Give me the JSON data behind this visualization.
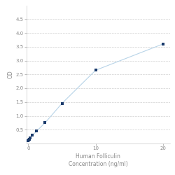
{
  "x": [
    0,
    0.078,
    0.156,
    0.313,
    0.625,
    1.25,
    2.5,
    5,
    10,
    20
  ],
  "y": [
    0.1,
    0.13,
    0.16,
    0.2,
    0.3,
    0.45,
    0.75,
    1.45,
    2.65,
    3.6
  ],
  "line_color": "#b8d4e8",
  "marker_color": "#1a3a6b",
  "marker_size": 3.5,
  "marker_style": "s",
  "xlabel_line1": "Human Folliculin",
  "xlabel_line2": "Concentration (ng/ml)",
  "ylabel": "OD",
  "xlim": [
    -0.3,
    21
  ],
  "ylim": [
    0,
    5.0
  ],
  "yticks": [
    0.5,
    1.0,
    1.5,
    2.0,
    2.5,
    3.0,
    3.5,
    4.0,
    4.5
  ],
  "xticks": [
    0,
    10,
    20
  ],
  "grid_color": "#d0d0d0",
  "grid_style": "--",
  "bg_color": "#ffffff",
  "axis_fontsize": 5.5,
  "tick_fontsize": 5,
  "label_color": "#888888"
}
